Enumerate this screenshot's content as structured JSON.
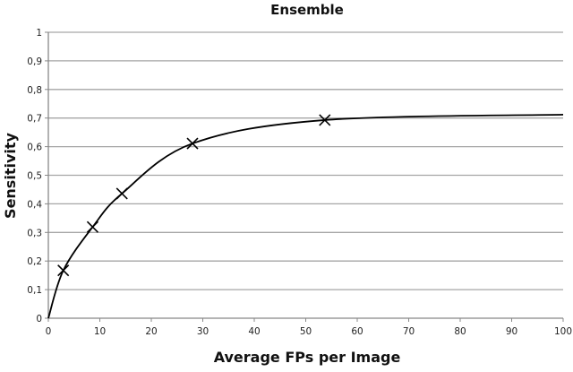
{
  "chart_data": {
    "type": "line",
    "title": "Ensemble",
    "xlabel": "Average FPs per Image",
    "ylabel": "Sensitivity",
    "xlim": [
      0,
      100
    ],
    "ylim": [
      0,
      1
    ],
    "grid": "horizontal",
    "x_ticks": [
      "0",
      "10",
      "20",
      "30",
      "40",
      "50",
      "60",
      "70",
      "80",
      "90",
      "100"
    ],
    "y_ticks": [
      "0",
      "0,1",
      "0,2",
      "0,3",
      "0,4",
      "0,5",
      "0,6",
      "0,7",
      "0,8",
      "0,9",
      "1"
    ],
    "series": [
      {
        "name": "Ensemble",
        "color": "#000000",
        "x": [
          0,
          2.9,
          8.6,
          14.3,
          28,
          53.7,
          100
        ],
        "y": [
          0,
          0.167,
          0.319,
          0.436,
          0.611,
          0.693,
          0.712
        ],
        "marker": [
          false,
          true,
          true,
          true,
          true,
          true,
          false
        ]
      }
    ]
  }
}
